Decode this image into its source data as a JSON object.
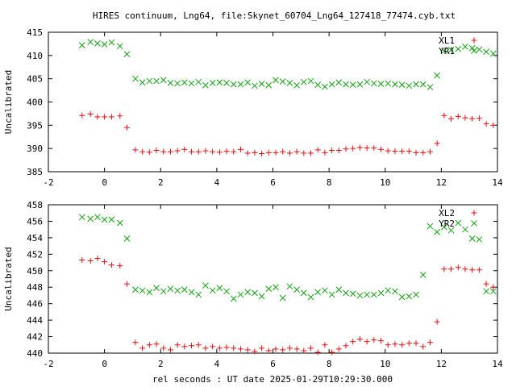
{
  "figure": {
    "title": "HIRES continuum, Lng64, file:Skynet_60704_Lng64_127418_77474.cyb.txt",
    "xlabel": "rel seconds : UT date 2025-01-29T10:29:30.000"
  },
  "chart_data": [
    {
      "type": "scatter",
      "ylabel": "Uncalibrated",
      "xlim": [
        -2,
        14
      ],
      "ylim": [
        385,
        415
      ],
      "xticks": [
        -2,
        0,
        2,
        4,
        6,
        8,
        10,
        12,
        14
      ],
      "yticks": [
        385,
        390,
        395,
        400,
        405,
        410,
        415
      ],
      "grid": false,
      "legend_position": "top-right",
      "series": [
        {
          "name": "XL1",
          "marker": "plus",
          "color": "#e01010",
          "x": [
            -0.8,
            -0.5,
            -0.25,
            0.0,
            0.25,
            0.55,
            0.8,
            1.1,
            1.35,
            1.6,
            1.85,
            2.1,
            2.35,
            2.6,
            2.85,
            3.1,
            3.35,
            3.6,
            3.85,
            4.1,
            4.35,
            4.6,
            4.85,
            5.1,
            5.35,
            5.6,
            5.85,
            6.1,
            6.35,
            6.6,
            6.85,
            7.1,
            7.35,
            7.6,
            7.85,
            8.1,
            8.35,
            8.6,
            8.85,
            9.1,
            9.35,
            9.6,
            9.85,
            10.1,
            10.35,
            10.6,
            10.85,
            11.1,
            11.35,
            11.6,
            11.85,
            12.1,
            12.35,
            12.6,
            12.85,
            13.1,
            13.35,
            13.6,
            13.85
          ],
          "y": [
            397.1,
            397.4,
            396.8,
            396.8,
            396.8,
            397.0,
            394.5,
            389.7,
            389.3,
            389.2,
            389.6,
            389.3,
            389.3,
            389.5,
            389.8,
            389.3,
            389.3,
            389.5,
            389.3,
            389.2,
            389.4,
            389.3,
            389.8,
            389.0,
            389.1,
            388.9,
            389.1,
            389.1,
            389.3,
            389.0,
            389.3,
            389.0,
            389.0,
            389.7,
            389.1,
            389.6,
            389.6,
            389.9,
            390.0,
            390.2,
            390.1,
            390.1,
            389.8,
            389.5,
            389.4,
            389.4,
            389.4,
            389.1,
            389.1,
            389.3,
            391.1,
            397.1,
            396.4,
            396.9,
            396.6,
            396.4,
            396.5,
            395.3,
            395.0
          ]
        },
        {
          "name": "YR1",
          "marker": "cross",
          "color": "#10a010",
          "x": [
            -0.8,
            -0.5,
            -0.25,
            0.0,
            0.25,
            0.55,
            0.8,
            1.1,
            1.35,
            1.6,
            1.85,
            2.1,
            2.35,
            2.6,
            2.85,
            3.1,
            3.35,
            3.6,
            3.85,
            4.1,
            4.35,
            4.6,
            4.85,
            5.1,
            5.35,
            5.6,
            5.85,
            6.1,
            6.35,
            6.6,
            6.85,
            7.1,
            7.35,
            7.6,
            7.85,
            8.1,
            8.35,
            8.6,
            8.85,
            9.1,
            9.35,
            9.6,
            9.85,
            10.1,
            10.35,
            10.6,
            10.85,
            11.1,
            11.35,
            11.6,
            11.85,
            12.1,
            12.35,
            12.6,
            12.85,
            13.1,
            13.35,
            13.6,
            13.85
          ],
          "y": [
            412.2,
            412.9,
            412.6,
            412.4,
            412.8,
            412.0,
            410.3,
            405.0,
            404.2,
            404.5,
            404.5,
            404.7,
            404.1,
            404.0,
            404.2,
            404.0,
            404.3,
            403.6,
            404.1,
            404.2,
            404.1,
            403.8,
            403.8,
            404.2,
            403.5,
            403.9,
            403.6,
            404.7,
            404.4,
            404.1,
            403.6,
            404.3,
            404.5,
            403.7,
            403.3,
            403.8,
            404.2,
            403.8,
            403.7,
            403.8,
            404.3,
            404.0,
            403.9,
            404.0,
            403.8,
            403.7,
            403.5,
            403.8,
            403.8,
            403.2,
            405.7,
            411.0,
            411.2,
            411.4,
            411.9,
            411.6,
            411.3,
            410.8,
            410.4
          ]
        }
      ]
    },
    {
      "type": "scatter",
      "ylabel": "Uncalibrated",
      "xlabel": "rel seconds : UT date 2025-01-29T10:29:30.000",
      "xlim": [
        -2,
        14
      ],
      "ylim": [
        440,
        458
      ],
      "xticks": [
        -2,
        0,
        2,
        4,
        6,
        8,
        10,
        12,
        14
      ],
      "yticks": [
        440,
        442,
        444,
        446,
        448,
        450,
        452,
        454,
        456,
        458
      ],
      "grid": false,
      "legend_position": "top-right",
      "series": [
        {
          "name": "XL2",
          "marker": "plus",
          "color": "#e01010",
          "x": [
            -0.8,
            -0.5,
            -0.25,
            0.0,
            0.25,
            0.55,
            0.8,
            1.1,
            1.35,
            1.6,
            1.85,
            2.1,
            2.35,
            2.6,
            2.85,
            3.1,
            3.35,
            3.6,
            3.85,
            4.1,
            4.35,
            4.6,
            4.85,
            5.1,
            5.35,
            5.6,
            5.85,
            6.1,
            6.35,
            6.6,
            6.85,
            7.1,
            7.35,
            7.6,
            7.85,
            8.1,
            8.35,
            8.6,
            8.85,
            9.1,
            9.35,
            9.6,
            9.85,
            10.1,
            10.35,
            10.6,
            10.85,
            11.1,
            11.35,
            11.6,
            11.85,
            12.1,
            12.35,
            12.6,
            12.85,
            13.1,
            13.35,
            13.6,
            13.85
          ],
          "y": [
            451.3,
            451.2,
            451.5,
            451.1,
            450.7,
            450.6,
            448.4,
            441.3,
            440.6,
            441.0,
            441.1,
            440.6,
            440.4,
            441.0,
            440.8,
            440.9,
            441.0,
            440.6,
            440.8,
            440.6,
            440.7,
            440.6,
            440.5,
            440.4,
            440.2,
            440.6,
            440.3,
            440.5,
            440.4,
            440.6,
            440.5,
            440.3,
            440.6,
            440.1,
            441.0,
            440.1,
            440.5,
            440.9,
            441.4,
            441.7,
            441.4,
            441.6,
            441.5,
            441.0,
            441.1,
            441.0,
            441.2,
            441.2,
            440.8,
            441.3,
            443.8,
            450.2,
            450.2,
            450.4,
            450.2,
            450.1,
            450.1,
            448.4,
            448.0
          ]
        },
        {
          "name": "YR2",
          "marker": "cross",
          "color": "#10a010",
          "x": [
            -0.8,
            -0.5,
            -0.25,
            0.0,
            0.25,
            0.55,
            0.8,
            1.1,
            1.35,
            1.6,
            1.85,
            2.1,
            2.35,
            2.6,
            2.85,
            3.1,
            3.35,
            3.6,
            3.85,
            4.1,
            4.35,
            4.6,
            4.85,
            5.1,
            5.35,
            5.6,
            5.85,
            6.1,
            6.35,
            6.6,
            6.85,
            7.1,
            7.35,
            7.6,
            7.85,
            8.1,
            8.35,
            8.6,
            8.85,
            9.1,
            9.35,
            9.6,
            9.85,
            10.1,
            10.35,
            10.6,
            10.85,
            11.1,
            11.35,
            11.6,
            11.85,
            12.1,
            12.35,
            12.6,
            12.85,
            13.1,
            13.35,
            13.6,
            13.85
          ],
          "y": [
            456.5,
            456.3,
            456.5,
            456.2,
            456.2,
            455.8,
            453.9,
            447.7,
            447.6,
            447.4,
            447.9,
            447.5,
            447.8,
            447.6,
            447.7,
            447.4,
            447.1,
            448.2,
            447.6,
            447.9,
            447.5,
            446.6,
            447.1,
            447.4,
            447.3,
            446.9,
            447.8,
            448.0,
            446.7,
            448.1,
            447.7,
            447.3,
            446.8,
            447.4,
            447.6,
            447.1,
            447.7,
            447.3,
            447.2,
            447.0,
            447.1,
            447.1,
            447.3,
            447.6,
            447.5,
            446.8,
            446.9,
            447.1,
            449.5,
            455.4,
            454.7,
            455.3,
            454.9,
            455.8,
            455.0,
            453.9,
            453.8,
            447.5,
            447.5
          ]
        }
      ]
    }
  ]
}
